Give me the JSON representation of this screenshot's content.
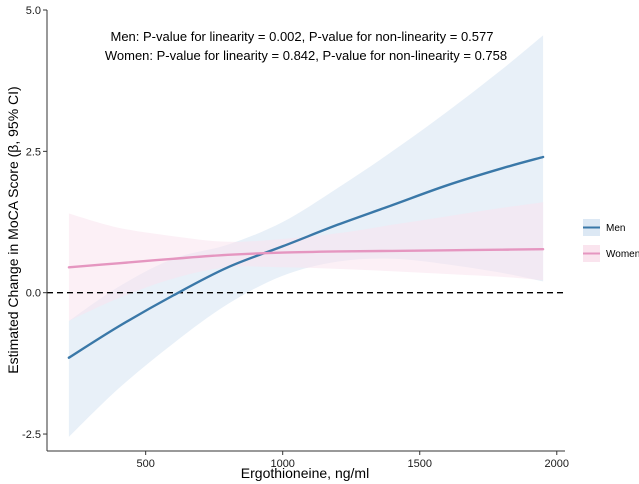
{
  "chart_data": {
    "type": "line",
    "xlabel": "Ergothioneine, ng/ml",
    "ylabel": "Estimated Change in MoCA Score (β, 95% CI)",
    "xlim": [
      140,
      2030
    ],
    "ylim": [
      -2.8,
      5.0
    ],
    "x_ticks": [
      500,
      1000,
      1500,
      2000
    ],
    "x_tick_labels": [
      "500",
      "1000",
      "1500",
      "2000"
    ],
    "y_ticks": [
      -2.5,
      0.0,
      2.5,
      5.0
    ],
    "y_tick_labels": [
      "-2.5",
      "0.0",
      "2.5",
      "5.0"
    ],
    "reference_line": {
      "y": 0.0,
      "style": "dashed"
    },
    "annotations": [
      "Men: P-value for linearity = 0.002, P-value for non-linearity = 0.577",
      "Women: P-value for linearity = 0.842, P-value for non-linearity = 0.758"
    ],
    "legend_position": "right",
    "series": [
      {
        "name": "Men",
        "line_color": "#3a78a8",
        "band_color": "#dce8f4",
        "x": [
          220,
          400,
          600,
          800,
          1000,
          1200,
          1400,
          1600,
          1800,
          1950
        ],
        "y": [
          -1.15,
          -0.6,
          -0.05,
          0.45,
          0.82,
          1.2,
          1.55,
          1.9,
          2.2,
          2.4
        ],
        "lower": [
          -2.55,
          -1.7,
          -0.9,
          -0.2,
          0.3,
          0.55,
          0.6,
          0.5,
          0.35,
          0.2
        ],
        "upper": [
          -0.5,
          0.1,
          0.6,
          0.85,
          1.25,
          1.85,
          2.5,
          3.2,
          3.95,
          4.55
        ]
      },
      {
        "name": "Women",
        "line_color": "#e596c0",
        "band_color": "#fae4ee",
        "x": [
          220,
          400,
          600,
          800,
          1000,
          1200,
          1400,
          1600,
          1800,
          1950
        ],
        "y": [
          0.45,
          0.52,
          0.6,
          0.67,
          0.71,
          0.73,
          0.74,
          0.75,
          0.76,
          0.77
        ],
        "lower": [
          -0.5,
          -0.1,
          0.25,
          0.45,
          0.45,
          0.42,
          0.38,
          0.33,
          0.28,
          0.22
        ],
        "upper": [
          1.4,
          1.15,
          1.0,
          0.9,
          0.95,
          1.05,
          1.2,
          1.35,
          1.5,
          1.6
        ]
      }
    ]
  }
}
